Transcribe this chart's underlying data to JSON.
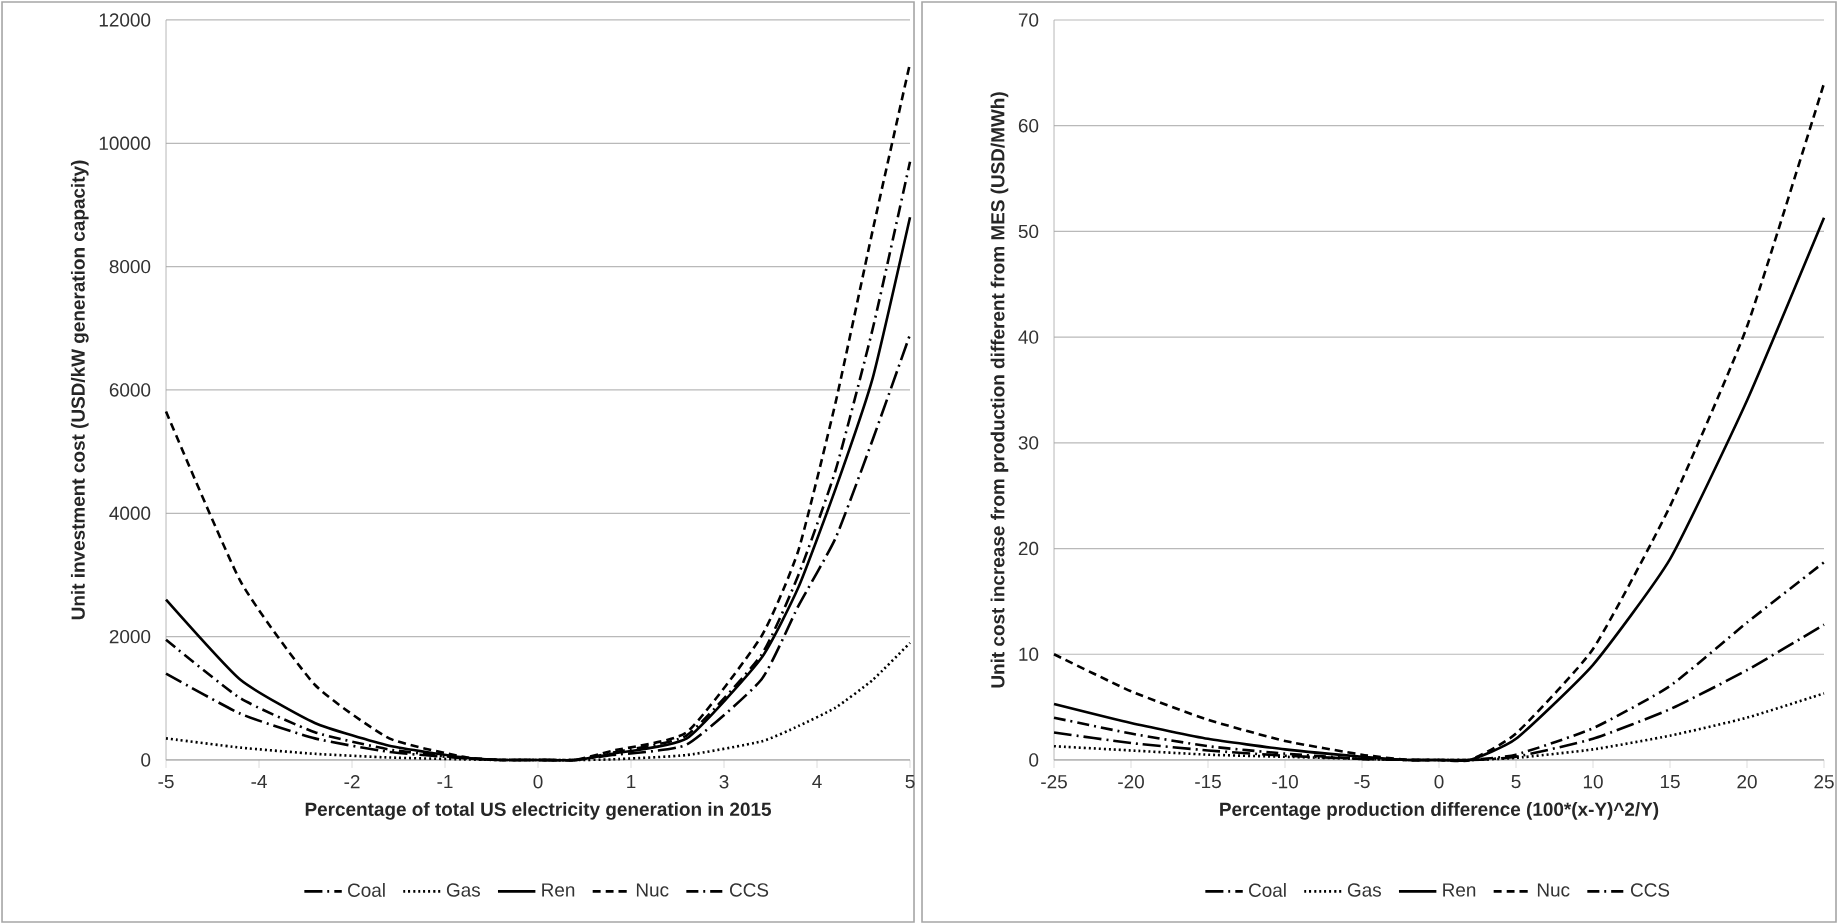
{
  "chart_data": [
    {
      "type": "line",
      "xlabel": "Percentage of total US electricity generation in 2015",
      "ylabel": "Unit investment cost (USD/kW generation capacity)",
      "xlim": [
        -5,
        5
      ],
      "ylim": [
        0,
        12000
      ],
      "xticks": [
        -5,
        {
          "value": -3.75,
          "label": "-4"
        },
        {
          "value": -2.5,
          "label": "-2"
        },
        {
          "value": -1.25,
          "label": "-1"
        },
        0,
        {
          "value": 1.25,
          "label": "1"
        },
        {
          "value": 2.5,
          "label": "3"
        },
        {
          "value": 3.75,
          "label": "4"
        },
        5
      ],
      "yticks": [
        0,
        2000,
        4000,
        6000,
        8000,
        10000,
        12000
      ],
      "grid": "y",
      "legend": "bottom",
      "series": [
        {
          "name": "Coal",
          "color": "#000000",
          "line_style": "longdashdot",
          "x": [
            -5,
            -4,
            -3,
            -2,
            -1,
            -0.5,
            0,
            0.5,
            1,
            2,
            3,
            3.5,
            4,
            4.5,
            5
          ],
          "values": [
            1400,
            750,
            350,
            130,
            30,
            0,
            0,
            0,
            80,
            250,
            1300,
            2500,
            3600,
            5200,
            6900
          ]
        },
        {
          "name": "Gas",
          "color": "#000000",
          "line_style": "dotted",
          "x": [
            -5,
            -4,
            -3,
            -2,
            -1,
            -0.5,
            0,
            0.5,
            1,
            2,
            3,
            3.5,
            4,
            4.5,
            5
          ],
          "values": [
            350,
            200,
            100,
            40,
            10,
            0,
            0,
            0,
            10,
            80,
            300,
            550,
            850,
            1300,
            1900
          ]
        },
        {
          "name": "Ren",
          "color": "#000000",
          "line_style": "solid",
          "x": [
            -5,
            -4,
            -3,
            -2,
            -1,
            -0.5,
            0,
            0.5,
            1,
            2,
            3,
            3.5,
            4,
            4.5,
            5
          ],
          "values": [
            2600,
            1300,
            600,
            230,
            40,
            0,
            0,
            0,
            100,
            350,
            1650,
            2800,
            4400,
            6200,
            8800
          ]
        },
        {
          "name": "Nuc",
          "color": "#000000",
          "line_style": "dashed",
          "x": [
            -5,
            -4,
            -3,
            -2,
            -1,
            -0.5,
            0,
            0.5,
            1,
            2,
            3,
            3.5,
            4,
            4.5,
            5
          ],
          "values": [
            5650,
            2900,
            1220,
            350,
            50,
            0,
            0,
            0,
            150,
            450,
            2000,
            3400,
            5800,
            8600,
            11300
          ]
        },
        {
          "name": "CCS",
          "color": "#000000",
          "line_style": "dashdot",
          "x": [
            -5,
            -4,
            -3,
            -2,
            -1,
            -0.5,
            0,
            0.5,
            1,
            2,
            3,
            3.5,
            4,
            4.5,
            5
          ],
          "values": [
            1950,
            1000,
            450,
            170,
            30,
            0,
            0,
            0,
            120,
            400,
            1700,
            3000,
            4700,
            7000,
            9700
          ]
        }
      ]
    },
    {
      "type": "line",
      "xlabel": "Percentage production  difference (100*(x-Y)^2/Y)",
      "ylabel": "Unit cost increase from production  different from MES (USD/MWh)",
      "xlim": [
        -25,
        25
      ],
      "ylim": [
        0,
        70
      ],
      "xticks": [
        -25,
        -20,
        -15,
        -10,
        -5,
        0,
        5,
        10,
        15,
        20,
        25
      ],
      "yticks": [
        0,
        10,
        20,
        30,
        40,
        50,
        60,
        70
      ],
      "grid": "y",
      "legend": "bottom",
      "series": [
        {
          "name": "Coal",
          "color": "#000000",
          "line_style": "longdashdot",
          "x": [
            -25,
            -20,
            -15,
            -10,
            -5,
            -2,
            0,
            2,
            5,
            10,
            15,
            20,
            25
          ],
          "values": [
            2.6,
            1.6,
            0.9,
            0.4,
            0.1,
            0,
            0,
            0,
            0.3,
            2,
            4.8,
            8.5,
            12.8
          ]
        },
        {
          "name": "Gas",
          "color": "#000000",
          "line_style": "dotted",
          "x": [
            -25,
            -20,
            -15,
            -10,
            -5,
            -2,
            0,
            2,
            5,
            10,
            15,
            20,
            25
          ],
          "values": [
            1.3,
            0.9,
            0.5,
            0.3,
            0.1,
            0,
            0,
            0,
            0.2,
            1,
            2.3,
            4,
            6.3
          ]
        },
        {
          "name": "Ren",
          "color": "#000000",
          "line_style": "solid",
          "x": [
            -25,
            -20,
            -15,
            -10,
            -5,
            -2,
            0,
            2,
            5,
            10,
            15,
            20,
            25
          ],
          "values": [
            5.3,
            3.5,
            2,
            1,
            0.3,
            0,
            0,
            0,
            2,
            9,
            19,
            34,
            51.3
          ]
        },
        {
          "name": "Nuc",
          "color": "#000000",
          "line_style": "dashed",
          "x": [
            -25,
            -20,
            -15,
            -10,
            -5,
            -2,
            0,
            2,
            5,
            10,
            15,
            20,
            25
          ],
          "values": [
            10,
            6.5,
            3.8,
            1.8,
            0.5,
            0,
            0,
            0,
            2.5,
            10.5,
            24,
            41,
            64
          ]
        },
        {
          "name": "CCS",
          "color": "#000000",
          "line_style": "dashdot",
          "x": [
            -25,
            -20,
            -15,
            -10,
            -5,
            -2,
            0,
            2,
            5,
            10,
            15,
            20,
            25
          ],
          "values": [
            4,
            2.5,
            1.3,
            0.6,
            0.1,
            0,
            0,
            0,
            0.5,
            3,
            7,
            13,
            18.7
          ]
        }
      ]
    }
  ]
}
